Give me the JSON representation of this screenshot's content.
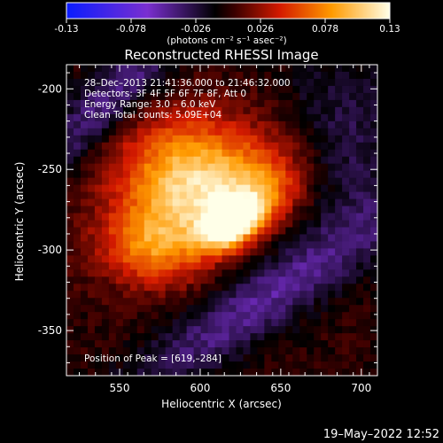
{
  "colorbar": {
    "ticks": [
      "-0.13",
      "-0.078",
      "-0.026",
      "0.026",
      "0.078",
      "0.13"
    ],
    "unit_label": "(photons cm⁻² s⁻¹ asec⁻²)"
  },
  "footer": {
    "date": "19–May–2022 12:52"
  },
  "chart_data": {
    "type": "heatmap",
    "title": "Reconstructed RHESSI Image",
    "xlabel": "Heliocentric X (arcsec)",
    "ylabel": "Heliocentric Y (arcsec)",
    "xlim": [
      517,
      710
    ],
    "ylim": [
      -378,
      -185
    ],
    "xticks": [
      "550",
      "600",
      "650",
      "700"
    ],
    "yticks": [
      "-200",
      "-250",
      "-300",
      "-350"
    ],
    "zlim": [
      -0.13,
      0.13
    ],
    "colormap": "blue-purple-black-red-orange-yellow-white",
    "peak": {
      "x": 619,
      "y": -284
    },
    "annotations": [
      "28–Dec–2013 21:41:36.000 to 21:46:32.000",
      "Detectors: 3F 4F 5F 6F 7F 8F, Att 0",
      "Energy Range: 3.0 – 6.0 keV",
      "Clean     Total counts: 5.09E+04"
    ],
    "peak_label": "Position of Peak = [619,–284]"
  }
}
